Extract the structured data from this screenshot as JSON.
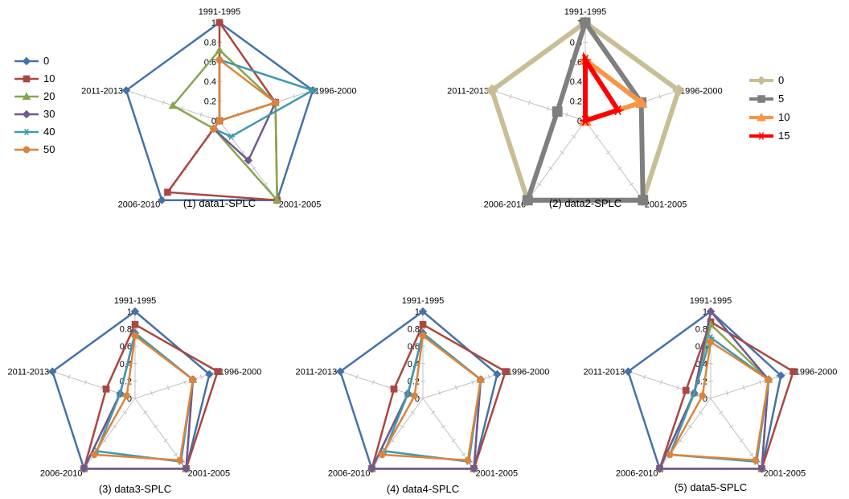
{
  "chart_data": [
    {
      "type": "radar",
      "caption": "(1) data1-SPLC",
      "categories": [
        "1991-1995",
        "1996-2000",
        "2001-2005",
        "2006-2010",
        "2011-2013"
      ],
      "ticks": [
        "0",
        "0.2",
        "0.4",
        "0.6",
        "0.8",
        "1"
      ],
      "rlim": [
        0,
        1
      ],
      "legend_position": "left",
      "series": [
        {
          "name": "0",
          "color": "#4572A7",
          "marker": "diamond",
          "values": [
            1,
            1,
            1,
            1,
            1
          ]
        },
        {
          "name": "10",
          "color": "#AA4643",
          "marker": "square",
          "values": [
            1,
            0.6,
            1,
            0.9,
            0
          ]
        },
        {
          "name": "20",
          "color": "#89A54E",
          "marker": "triangle",
          "values": [
            0.72,
            0.6,
            1,
            0.1,
            0.5
          ]
        },
        {
          "name": "30",
          "color": "#71588F",
          "marker": "diamond",
          "values": [
            0,
            0.6,
            0.5,
            0.1,
            0
          ]
        },
        {
          "name": "40",
          "color": "#4198AF",
          "marker": "star",
          "values": [
            0.62,
            1,
            0.2,
            0.1,
            0
          ]
        },
        {
          "name": "50",
          "color": "#DB843D",
          "marker": "circle",
          "values": [
            0.62,
            0.6,
            0,
            0.1,
            0
          ]
        }
      ]
    },
    {
      "type": "radar",
      "caption": "(2) data2-SPLC",
      "categories": [
        "1991-1995",
        "1996-2000",
        "2001-2005",
        "2006-2010",
        "2011-2013"
      ],
      "ticks": [
        "0",
        "0.2",
        "0.4",
        "0.6",
        "0.8",
        "1"
      ],
      "rlim": [
        0,
        1
      ],
      "legend_position": "right",
      "series": [
        {
          "name": "0",
          "color": "#C8BE96",
          "marker": "diamond",
          "values": [
            1,
            1,
            1,
            1,
            1
          ]
        },
        {
          "name": "5",
          "color": "#7F7F7F",
          "marker": "square",
          "values": [
            1,
            0.6,
            1,
            1,
            0.3
          ]
        },
        {
          "name": "10",
          "color": "#F79646",
          "marker": "triangle",
          "values": [
            0.62,
            0.6,
            0,
            0,
            0
          ]
        },
        {
          "name": "15",
          "color": "#FF0000",
          "marker": "star",
          "values": [
            0.62,
            0.35,
            0,
            0,
            0
          ]
        }
      ]
    },
    {
      "type": "radar",
      "caption": "(3) data3-SPLC",
      "categories": [
        "1991-1995",
        "1996-2000",
        "2001-2005",
        "2006-2010",
        "2011-2013"
      ],
      "ticks": [
        "0",
        "0.2",
        "0.4",
        "0.6",
        "0.8",
        "1"
      ],
      "rlim": [
        0,
        1
      ],
      "series": [
        {
          "name": "0",
          "color": "#4572A7",
          "marker": "diamond",
          "values": [
            1,
            0.9,
            1,
            1,
            1
          ]
        },
        {
          "name": "10",
          "color": "#AA4643",
          "marker": "square",
          "values": [
            0.85,
            1,
            1,
            1,
            0.35
          ]
        },
        {
          "name": "20",
          "color": "#89A54E",
          "marker": "triangle",
          "values": [
            0.75,
            0.7,
            1,
            1,
            0.18
          ]
        },
        {
          "name": "30",
          "color": "#71588F",
          "marker": "diamond",
          "values": [
            0.75,
            0.7,
            1,
            1,
            0.18
          ]
        },
        {
          "name": "40",
          "color": "#4198AF",
          "marker": "star",
          "values": [
            0.75,
            0.7,
            0.9,
            0.75,
            0.18
          ]
        },
        {
          "name": "50",
          "color": "#DB843D",
          "marker": "circle",
          "values": [
            0.72,
            0.7,
            0.88,
            0.8,
            0.1
          ]
        }
      ]
    },
    {
      "type": "radar",
      "caption": "(4) data4-SPLC",
      "categories": [
        "1991-1995",
        "1996-2000",
        "2001-2005",
        "2006-2010",
        "2011-2013"
      ],
      "ticks": [
        "0",
        "0.2",
        "0.4",
        "0.6",
        "0.8",
        "1"
      ],
      "rlim": [
        0,
        1
      ],
      "series": [
        {
          "name": "0",
          "color": "#4572A7",
          "marker": "diamond",
          "values": [
            1,
            0.9,
            1,
            1,
            1
          ]
        },
        {
          "name": "10",
          "color": "#AA4643",
          "marker": "square",
          "values": [
            0.85,
            1,
            1,
            1,
            0.35
          ]
        },
        {
          "name": "20",
          "color": "#89A54E",
          "marker": "triangle",
          "values": [
            0.75,
            0.7,
            1,
            1,
            0.18
          ]
        },
        {
          "name": "30",
          "color": "#71588F",
          "marker": "diamond",
          "values": [
            0.75,
            0.7,
            1,
            1,
            0.18
          ]
        },
        {
          "name": "40",
          "color": "#4198AF",
          "marker": "star",
          "values": [
            0.75,
            0.7,
            0.9,
            0.75,
            0.18
          ]
        },
        {
          "name": "50",
          "color": "#DB843D",
          "marker": "circle",
          "values": [
            0.72,
            0.7,
            0.88,
            0.8,
            0.1
          ]
        }
      ]
    },
    {
      "type": "radar",
      "caption": "(5) data5-SPLC",
      "categories": [
        "1991-1995",
        "1996-2000",
        "2001-2005",
        "2006-2010",
        "2011-2013"
      ],
      "ticks": [
        "0",
        "0.2",
        "0.4",
        "0.6",
        "0.8",
        "1"
      ],
      "rlim": [
        0,
        1
      ],
      "series": [
        {
          "name": "0",
          "color": "#4572A7",
          "marker": "diamond",
          "values": [
            1,
            0.85,
            1,
            1,
            1
          ]
        },
        {
          "name": "10",
          "color": "#AA4643",
          "marker": "square",
          "values": [
            0.88,
            1,
            1,
            1,
            0.3
          ]
        },
        {
          "name": "20",
          "color": "#89A54E",
          "marker": "triangle",
          "values": [
            0.85,
            0.7,
            1,
            1,
            0.2
          ]
        },
        {
          "name": "30",
          "color": "#71588F",
          "marker": "diamond",
          "values": [
            1,
            0.7,
            1,
            1,
            0.2
          ]
        },
        {
          "name": "40",
          "color": "#4198AF",
          "marker": "star",
          "values": [
            0.7,
            0.7,
            0.9,
            0.8,
            0.2
          ]
        },
        {
          "name": "50",
          "color": "#DB843D",
          "marker": "circle",
          "values": [
            0.65,
            0.7,
            0.88,
            0.8,
            0.1
          ]
        }
      ]
    }
  ]
}
